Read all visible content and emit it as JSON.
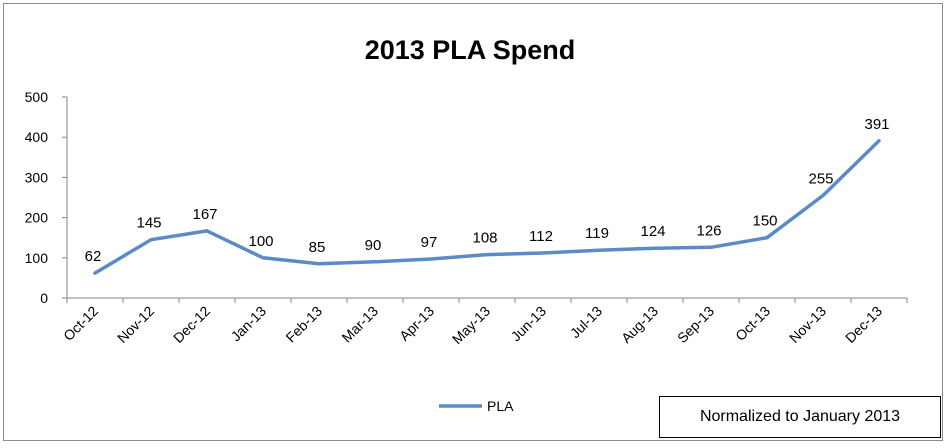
{
  "chart_data": {
    "type": "line",
    "title": "2013 PLA Spend",
    "xlabel": "",
    "ylabel": "",
    "categories": [
      "Oct-12",
      "Nov-12",
      "Dec-12",
      "Jan-13",
      "Feb-13",
      "Mar-13",
      "Apr-13",
      "May-13",
      "Jun-13",
      "Jul-13",
      "Aug-13",
      "Sep-13",
      "Oct-13",
      "Nov-13",
      "Dec-13"
    ],
    "series": [
      {
        "name": "PLA",
        "values": [
          62,
          145,
          167,
          100,
          85,
          90,
          97,
          108,
          112,
          119,
          124,
          126,
          150,
          255,
          391
        ],
        "color": "#5b8bc6"
      }
    ],
    "ylim": [
      0,
      500
    ],
    "yticks": [
      0,
      100,
      200,
      300,
      400,
      500
    ],
    "grid": false,
    "data_labels": true,
    "legend": "bottom"
  },
  "note": "Normalized to January 2013"
}
